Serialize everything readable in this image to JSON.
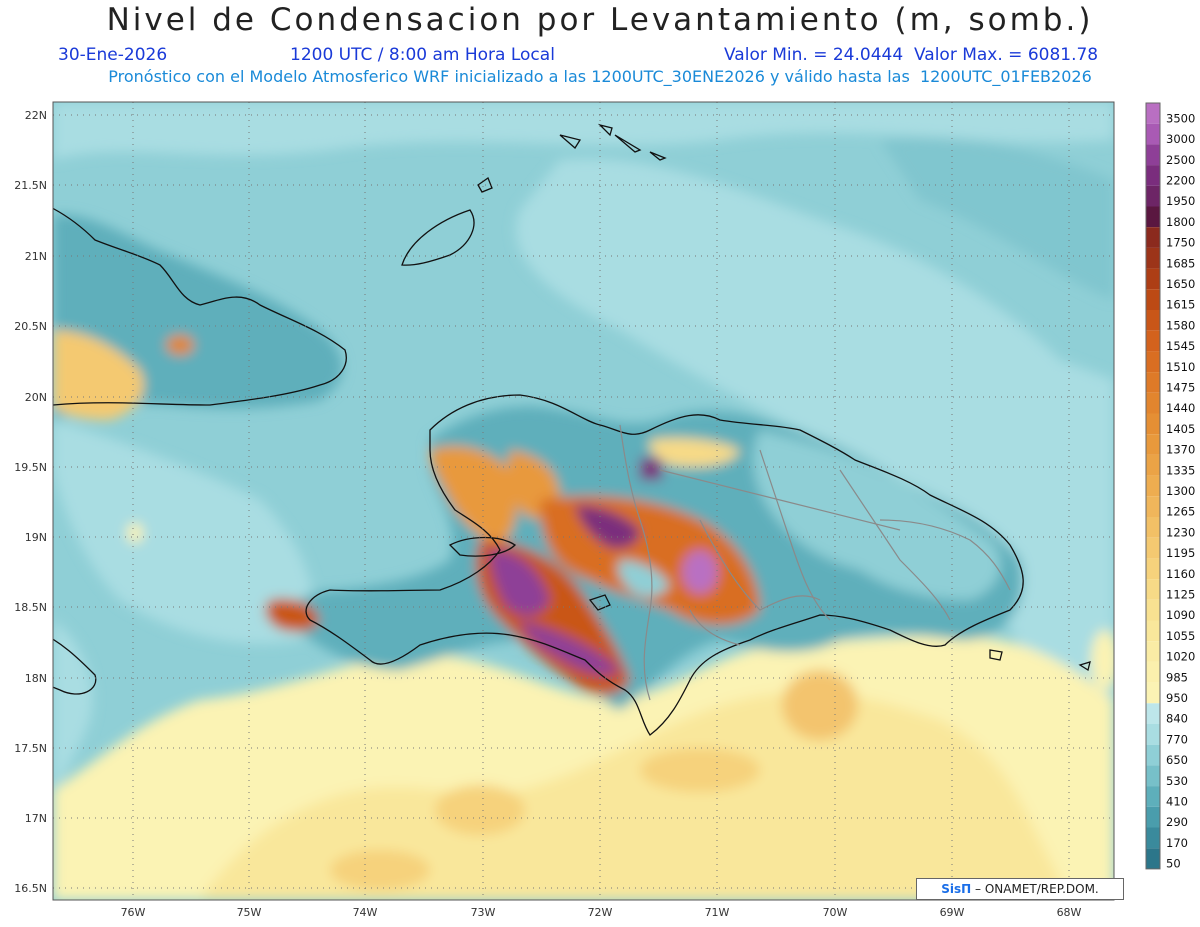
{
  "header": {
    "title": "Nivel de Condensacion por Levantamiento (m, somb.)",
    "date": "30-Ene-2026",
    "time": "1200 UTC / 8:00 am Hora Local",
    "minmax": "Valor Min. = 24.0444  Valor Max. = 6081.78",
    "subtitle": "Pronóstico con el Modelo Atmosferico WRF inicializado a las 1200UTC_30ENE2026 y válido hasta las  1200UTC_01FEB2026"
  },
  "axes": {
    "lat_labels": [
      "22N",
      "21.5N",
      "21N",
      "20.5N",
      "20N",
      "19.5N",
      "19N",
      "18.5N",
      "18N",
      "17.5N",
      "17N",
      "16.5N"
    ],
    "lon_labels": [
      "76W",
      "75W",
      "74W",
      "73W",
      "72W",
      "71W",
      "70W",
      "69W",
      "68W"
    ]
  },
  "colorbar": {
    "labels": [
      "3500",
      "3000",
      "2500",
      "2200",
      "1950",
      "1800",
      "1750",
      "1685",
      "1650",
      "1615",
      "1580",
      "1545",
      "1510",
      "1475",
      "1440",
      "1405",
      "1370",
      "1335",
      "1300",
      "1265",
      "1230",
      "1195",
      "1160",
      "1125",
      "1090",
      "1055",
      "1020",
      "985",
      "950",
      "840",
      "770",
      "650",
      "530",
      "410",
      "290",
      "170",
      "50"
    ],
    "colors": [
      "#b96fc2",
      "#a95ab4",
      "#8e3f97",
      "#7a2d7d",
      "#6d2566",
      "#5a1740",
      "#8b2a1e",
      "#9c3419",
      "#ad3e15",
      "#bc4a14",
      "#c95618",
      "#d3621d",
      "#d96e22",
      "#de7a28",
      "#e2852e",
      "#e58f34",
      "#e8993c",
      "#eba346",
      "#eead50",
      "#f0b65b",
      "#f2c066",
      "#f4c971",
      "#f6d27c",
      "#f7da87",
      "#f8e191",
      "#f9e79b",
      "#faeca5",
      "#fbf0ad",
      "#fbf3b4",
      "#bde6ea",
      "#a9dde2",
      "#8fcfd6",
      "#77c0c9",
      "#5eafbb",
      "#4a9dac",
      "#3a8a9c",
      "#2c768a"
    ]
  },
  "credit": {
    "brand": "SisΠ",
    "text": "– ONAMET/REP.DOM."
  }
}
